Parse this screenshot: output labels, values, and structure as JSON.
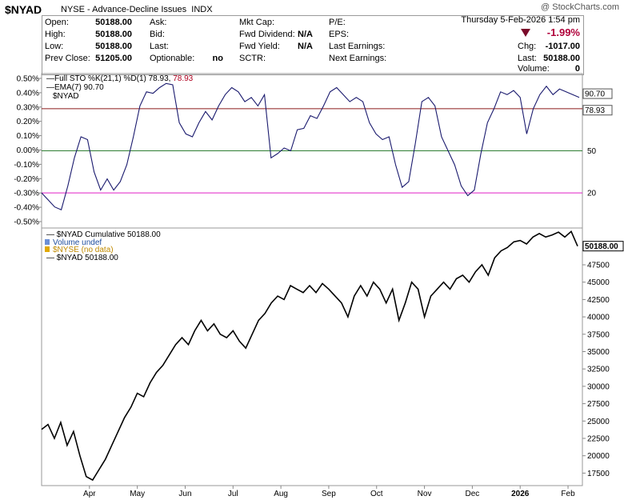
{
  "header": {
    "symbol": "$NYAD",
    "description": "NYSE - Advance-Decline Issues",
    "exchange": "INDX",
    "watermark": "@ StockCharts.com",
    "datetime": "Thursday  5-Feb-2026  1:54 pm"
  },
  "quote": {
    "open_label": "Open:",
    "open": "50188.00",
    "high_label": "High:",
    "high": "50188.00",
    "low_label": "Low:",
    "low": "50188.00",
    "prev_label": "Prev Close:",
    "prev": "51205.00",
    "ask_label": "Ask:",
    "bid_label": "Bid:",
    "last_label": "Last:",
    "optionable_label": "Optionable:",
    "optionable": "no",
    "mktcap_label": "Mkt Cap:",
    "fwddiv_label": "Fwd Dividend:",
    "fwddiv": "N/A",
    "fwdyield_label": "Fwd Yield:",
    "fwdyield": "N/A",
    "sctr_label": "SCTR:",
    "pe_label": "P/E:",
    "eps_label": "EPS:",
    "lastearn_label": "Last Earnings:",
    "nextearn_label": "Next Earnings:",
    "chg_pct": "-1.99%",
    "chg_label": "Chg:",
    "chg": "-1017.00",
    "last2_label": "Last:",
    "last2": "50188.00",
    "volume_label": "Volume:",
    "volume": "0"
  },
  "chart_data": [
    {
      "type": "line",
      "panel": "stochastic",
      "legend": [
        {
          "text": "Full STO %K(21,1) %D(1) 78.93,",
          "color": "#000000"
        },
        {
          "text": "78.93",
          "color": "#b00020"
        },
        {
          "text": "EMA(7) 90.70",
          "color": "#000000"
        },
        {
          "text": "$NYAD",
          "color": "#000000"
        }
      ],
      "left_ticks": [
        "0.50%",
        "0.40%",
        "0.30%",
        "0.20%",
        "0.10%",
        "0.00%",
        "-0.10%",
        "-0.20%",
        "-0.30%",
        "-0.40%",
        "-0.50%"
      ],
      "right_ticks": [
        "50",
        "20"
      ],
      "reference_lines": [
        {
          "value": 80,
          "color": "#8b1a1a"
        },
        {
          "value": 50,
          "color": "#2e7d32"
        },
        {
          "value": 20,
          "color": "#e020c8"
        }
      ],
      "ylim": [
        -5,
        105
      ],
      "last_value_labels": [
        "90.70",
        "78.93"
      ],
      "x": [
        0,
        3,
        6,
        9,
        12,
        15,
        18,
        21,
        24,
        27,
        30,
        33,
        36,
        39,
        42,
        45,
        48,
        51,
        54,
        57,
        60,
        63,
        66,
        69,
        72,
        75,
        78,
        81,
        84,
        87,
        90,
        93,
        96,
        99,
        102,
        105,
        108,
        111,
        114,
        117,
        120,
        123,
        126,
        129,
        132,
        135,
        138,
        141,
        144,
        147,
        150,
        153,
        156,
        159,
        162,
        165,
        168,
        171,
        174,
        177,
        180,
        183,
        186,
        189,
        192,
        195,
        198,
        201,
        204,
        207,
        210,
        213,
        216,
        219,
        222,
        225,
        228,
        231,
        234,
        237,
        240,
        243,
        246
      ],
      "series": [
        {
          "color": "#1a1a6e",
          "values": [
            20,
            15,
            10,
            8,
            25,
            45,
            60,
            58,
            35,
            22,
            30,
            22,
            28,
            40,
            60,
            82,
            92,
            91,
            95,
            98,
            97,
            70,
            62,
            60,
            70,
            78,
            72,
            82,
            90,
            95,
            92,
            85,
            88,
            82,
            90,
            45,
            48,
            52,
            50,
            65,
            66,
            75,
            73,
            82,
            92,
            95,
            90,
            85,
            88,
            85,
            70,
            62,
            58,
            60,
            40,
            24,
            28,
            55,
            85,
            88,
            82,
            60,
            50,
            40,
            25,
            18,
            22,
            48,
            70,
            80,
            92,
            90,
            93,
            88,
            62,
            80,
            90,
            96,
            90,
            94,
            92,
            90,
            88
          ]
        }
      ]
    },
    {
      "type": "line",
      "panel": "cumulative",
      "legend": [
        {
          "text": "$NYAD Cumulative 50188.00",
          "color": "#000000"
        },
        {
          "text": "Volume undef",
          "color": "#1f4e9e"
        },
        {
          "text": "$NYSE (no data)",
          "color": "#c08a00"
        },
        {
          "text": "$NYAD 50188.00",
          "color": "#000000"
        }
      ],
      "y_ticks": [
        17500,
        20000,
        22500,
        25000,
        27500,
        30000,
        32500,
        35000,
        37500,
        40000,
        42500,
        45000,
        47500
      ],
      "ylim": [
        15700,
        52800
      ],
      "last_value_label": "50188.00",
      "x_ticks": [
        {
          "label": "Apr",
          "pos": 15
        },
        {
          "label": "May",
          "pos": 30
        },
        {
          "label": "Jun",
          "pos": 45
        },
        {
          "label": "Jul",
          "pos": 60
        },
        {
          "label": "Aug",
          "pos": 75
        },
        {
          "label": "Sep",
          "pos": 90
        },
        {
          "label": "Oct",
          "pos": 105
        },
        {
          "label": "Nov",
          "pos": 120
        },
        {
          "label": "Dec",
          "pos": 135
        },
        {
          "label": "2026",
          "pos": 150,
          "bold": true
        },
        {
          "label": "Feb",
          "pos": 165
        }
      ],
      "x": [
        0,
        2,
        4,
        6,
        8,
        10,
        12,
        14,
        16,
        18,
        20,
        22,
        24,
        26,
        28,
        30,
        32,
        34,
        36,
        38,
        40,
        42,
        44,
        46,
        48,
        50,
        52,
        54,
        56,
        58,
        60,
        62,
        64,
        66,
        68,
        70,
        72,
        74,
        76,
        78,
        80,
        82,
        84,
        86,
        88,
        90,
        92,
        94,
        96,
        98,
        100,
        102,
        104,
        106,
        108,
        110,
        112,
        114,
        116,
        118,
        120,
        122,
        124,
        126,
        128,
        130,
        132,
        134,
        136,
        138,
        140,
        142,
        144,
        146,
        148,
        150,
        152,
        154,
        156,
        158,
        160,
        162,
        164,
        166,
        168
      ],
      "series": [
        {
          "color": "#000000",
          "values": [
            23800,
            24500,
            22500,
            24800,
            21500,
            23500,
            20000,
            17000,
            16500,
            18000,
            19500,
            21500,
            23500,
            25500,
            27000,
            29000,
            28500,
            30500,
            32000,
            33000,
            34500,
            36000,
            37000,
            36000,
            38000,
            39500,
            38000,
            39000,
            37500,
            37000,
            38000,
            36500,
            35500,
            37500,
            39500,
            40500,
            42000,
            43000,
            42500,
            44500,
            44000,
            43500,
            44500,
            43500,
            44800,
            44000,
            43000,
            42000,
            40000,
            43000,
            44500,
            43000,
            45000,
            44000,
            42000,
            44000,
            39500,
            42000,
            45000,
            44000,
            40000,
            43000,
            44000,
            45000,
            44000,
            45500,
            46000,
            45000,
            46500,
            47500,
            46000,
            48500,
            49500,
            50000,
            50800,
            51000,
            50500,
            51500,
            52000,
            51500,
            51800,
            52200,
            51500,
            52300,
            50188
          ]
        }
      ]
    }
  ]
}
